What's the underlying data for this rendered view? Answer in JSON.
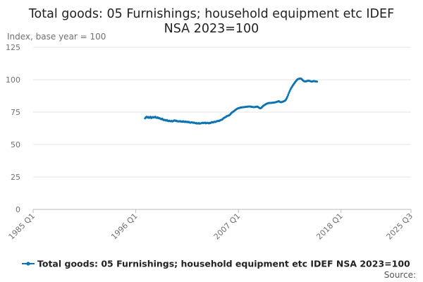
{
  "chart_data": {
    "type": "line",
    "title_lines": [
      "Total goods: 05 Furnishings; household equipment etc IDEF",
      "NSA 2023=100"
    ],
    "ylabel": "Index, base year = 100",
    "ylim": [
      0,
      125
    ],
    "y_ticks": [
      0,
      25,
      50,
      75,
      100,
      125
    ],
    "x_ticks": [
      "1985 Q1",
      "1996 Q1",
      "2007 Q1",
      "2018 Q1",
      "2025 Q3"
    ],
    "x_start": "1985 Q1",
    "x_end": "2025 Q3",
    "grid": true,
    "legend_position": "bottom",
    "source_label": "Source:",
    "series": [
      {
        "name": "Total goods: 05 Furnishings; household equipment etc IDEF NSA 2023=100",
        "color": "#0a74b3",
        "start": "1997 Q1",
        "frequency": "monthly",
        "values": [
          70.2,
          71.0,
          71.4,
          70.8,
          71.2,
          70.5,
          71.0,
          71.3,
          70.4,
          70.9,
          71.2,
          70.8,
          71.0,
          71.4,
          70.7,
          70.6,
          70.9,
          70.3,
          70.5,
          70.1,
          69.8,
          69.5,
          69.9,
          69.2,
          68.8,
          69.1,
          68.7,
          68.5,
          68.9,
          68.3,
          68.0,
          68.4,
          68.1,
          67.9,
          68.2,
          67.8,
          68.0,
          68.5,
          68.6,
          68.2,
          68.4,
          67.9,
          68.0,
          67.7,
          67.9,
          68.1,
          67.6,
          67.8,
          67.5,
          67.9,
          67.6,
          67.4,
          67.7,
          67.3,
          67.5,
          67.2,
          67.5,
          67.1,
          66.8,
          67.0,
          67.2,
          66.9,
          66.7,
          67.0,
          66.6,
          66.4,
          66.6,
          66.2,
          66.3,
          66.5,
          66.1,
          66.3,
          66.4,
          66.6,
          66.8,
          66.5,
          66.7,
          66.9,
          66.4,
          66.5,
          66.8,
          66.6,
          66.3,
          66.7,
          66.5,
          67.0,
          67.3,
          67.0,
          67.2,
          67.6,
          67.4,
          67.5,
          67.9,
          68.0,
          68.3,
          68.1,
          68.5,
          68.8,
          69.0,
          69.2,
          69.8,
          70.3,
          70.7,
          71.0,
          71.3,
          71.8,
          72.1,
          72.3,
          72.5,
          72.9,
          73.6,
          74.3,
          74.8,
          75.2,
          75.6,
          76.1,
          76.6,
          77.0,
          77.4,
          77.8,
          78.0,
          78.2,
          78.3,
          78.5,
          78.6,
          78.7,
          78.8,
          78.8,
          78.9,
          79.0,
          79.1,
          79.1,
          79.2,
          79.3,
          79.3,
          79.3,
          79.2,
          79.1,
          79.0,
          78.9,
          78.8,
          78.9,
          79.0,
          79.1,
          79.3,
          79.0,
          78.6,
          78.2,
          77.9,
          78.1,
          78.6,
          79.2,
          79.8,
          80.2,
          80.6,
          81.0,
          81.4,
          81.6,
          81.8,
          82.0,
          82.0,
          82.1,
          82.1,
          82.2,
          82.2,
          82.3,
          82.4,
          82.5,
          82.6,
          82.8,
          83.0,
          83.2,
          83.4,
          83.0,
          82.7,
          82.6,
          82.8,
          83.0,
          83.2,
          83.5,
          83.9,
          84.5,
          85.5,
          86.8,
          88.3,
          89.8,
          91.2,
          92.5,
          93.6,
          94.6,
          95.5,
          96.4,
          97.3,
          98.1,
          98.9,
          99.6,
          100.2,
          100.5,
          100.7,
          100.8,
          100.8,
          100.6,
          100.1,
          99.4,
          98.9,
          98.7,
          98.6,
          98.7,
          98.9,
          99.1,
          99.2,
          99.1,
          98.9,
          98.7,
          98.5,
          98.6,
          98.8,
          98.9,
          98.8,
          98.7,
          98.6,
          98.5
        ]
      }
    ]
  }
}
